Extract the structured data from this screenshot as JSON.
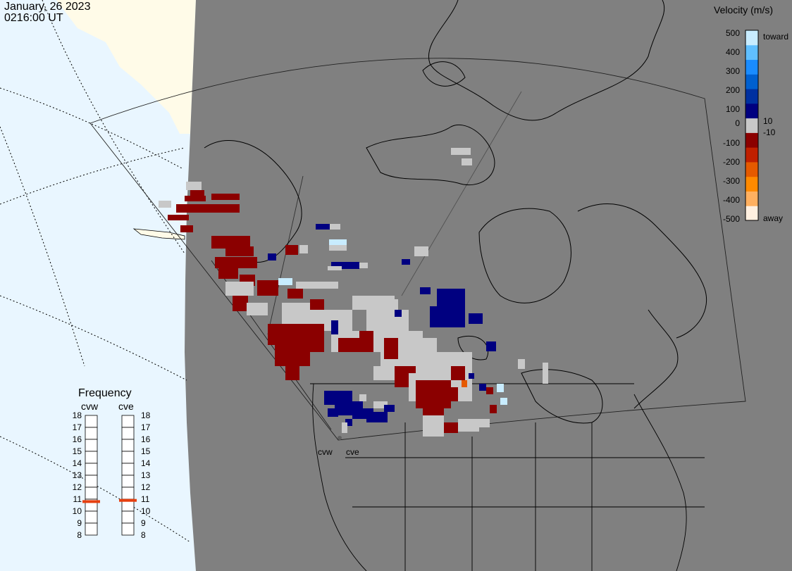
{
  "header": {
    "date": "January, 26 2023",
    "time": "0216:00 UT"
  },
  "legend": {
    "title": "Velocity (m/s)",
    "ticks": [
      "500",
      "400",
      "300",
      "200",
      "100",
      "10",
      "0",
      "-10",
      "-100",
      "-200",
      "-300",
      "-400",
      "-500"
    ],
    "toward_label": "toward",
    "away_label": "away",
    "colors": [
      "#fff0e0",
      "#ffb060",
      "#ff8a00",
      "#e55a00",
      "#c02000",
      "#8b0000",
      "#c8c8c8",
      "#000080",
      "#0030a0",
      "#0060d0",
      "#1a8cff",
      "#60bfff",
      "#c8ecff"
    ]
  },
  "frequency": {
    "title": "Frequency",
    "radars": [
      {
        "name": "cvw",
        "value": 10.8
      },
      {
        "name": "cve",
        "value": 10.9
      }
    ],
    "scale": [
      "18",
      "17",
      "16",
      "15",
      "14",
      "13",
      "12",
      "11",
      "10",
      "9",
      "8"
    ],
    "marker_color": "#e64010"
  },
  "map": {
    "radar_sites": [
      "cvw",
      "cve"
    ],
    "background_color": "#808080",
    "ocean_color": "#e9f6ff",
    "land_color": "#fffbe8"
  }
}
